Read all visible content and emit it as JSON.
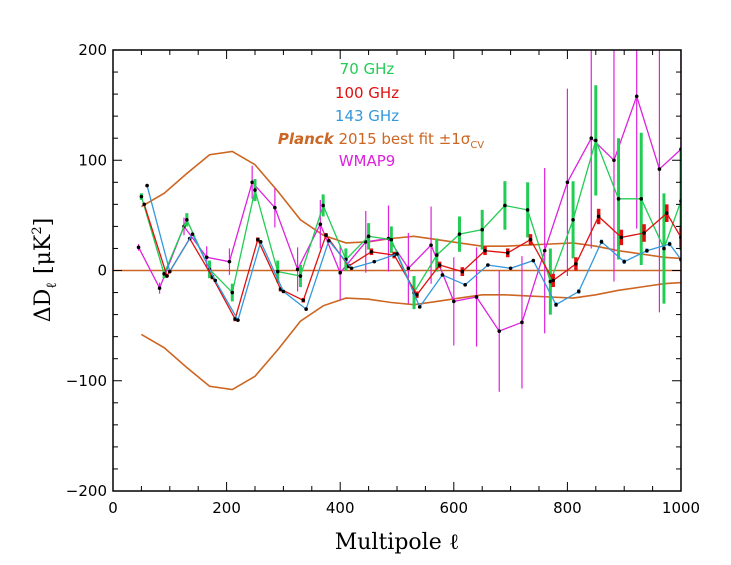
{
  "chart_data": {
    "type": "line",
    "xlabel": "Multipole ℓ",
    "ylabel": "ΔD",
    "ylabel_sub": "ℓ",
    "ylabel_units": "[μK",
    "ylabel_units_sup": "2",
    "ylabel_units_close": "]",
    "xlim": [
      0,
      1000
    ],
    "ylim": [
      -200,
      200
    ],
    "xticks": [
      0,
      200,
      400,
      600,
      800,
      1000
    ],
    "yticks": [
      -200,
      -100,
      0,
      100,
      200
    ],
    "xtick_labels": [
      "0",
      "200",
      "400",
      "600",
      "800",
      "1000"
    ],
    "ytick_labels": [
      "−200",
      "−100",
      "0",
      "100",
      "200"
    ],
    "legend": {
      "placement": "top-center",
      "entries": [
        {
          "label": "70 GHz",
          "color": "#22cc55"
        },
        {
          "label": "100 GHz",
          "color": "#e01010"
        },
        {
          "label": "143 GHz",
          "color": "#3399dd"
        },
        {
          "label_italic": "Planck",
          "label": " 2015 best fit ±1σ",
          "label_sub": "CV",
          "color": "#cc6622"
        },
        {
          "label": "WMAP9",
          "color": "#dd22dd"
        }
      ]
    },
    "zero_line": 0,
    "cv_band": {
      "name": "Planck 2015 best fit ±1σCV",
      "color": "#cc6622",
      "x": [
        50,
        90,
        130,
        170,
        210,
        250,
        290,
        330,
        370,
        410,
        450,
        490,
        530,
        570,
        610,
        650,
        690,
        730,
        770,
        810,
        850,
        890,
        930,
        970,
        1000
      ],
      "upper": [
        58,
        70,
        88,
        105,
        108,
        96,
        72,
        46,
        32,
        25,
        26,
        29,
        31,
        28,
        25,
        22,
        22,
        23,
        24,
        25,
        22,
        18,
        15,
        12,
        11
      ],
      "lower": [
        -58,
        -70,
        -88,
        -105,
        -108,
        -96,
        -72,
        -46,
        -32,
        -25,
        -26,
        -29,
        -31,
        -28,
        -25,
        -22,
        -22,
        -23,
        -24,
        -25,
        -22,
        -18,
        -15,
        -12,
        -11
      ]
    },
    "series": [
      {
        "name": "WMAP9",
        "color": "#dd22dd",
        "x": [
          45,
          82,
          125,
          165,
          205,
          245,
          285,
          325,
          365,
          400,
          445,
          485,
          520,
          560,
          600,
          640,
          680,
          720,
          760,
          800,
          842,
          882,
          922,
          962,
          1000
        ],
        "y": [
          21,
          -16,
          40,
          12,
          8,
          80,
          57,
          1,
          42,
          -2,
          26,
          29,
          2,
          23,
          -28,
          -24,
          -55,
          -47,
          18,
          80,
          120,
          100,
          158,
          92,
          110
        ],
        "err": [
          3,
          5,
          8,
          10,
          12,
          15,
          18,
          20,
          22,
          25,
          28,
          30,
          32,
          35,
          40,
          45,
          55,
          60,
          75,
          85,
          100,
          110,
          120,
          130,
          140
        ]
      },
      {
        "name": "70 GHz",
        "color": "#22cc55",
        "x": [
          50,
          90,
          130,
          170,
          210,
          250,
          290,
          330,
          370,
          410,
          450,
          490,
          530,
          570,
          610,
          650,
          690,
          730,
          770,
          810,
          850,
          890,
          930,
          970,
          1000
        ],
        "y": [
          67,
          -3,
          46,
          1,
          -20,
          73,
          -1,
          -5,
          59,
          10,
          31,
          28,
          -20,
          14,
          33,
          37,
          59,
          55,
          -10,
          46,
          118,
          65,
          65,
          20,
          63
        ],
        "err": [
          3,
          4,
          6,
          8,
          8,
          10,
          10,
          10,
          10,
          10,
          12,
          12,
          15,
          15,
          16,
          18,
          22,
          25,
          30,
          35,
          50,
          55,
          60,
          50,
          45
        ]
      },
      {
        "name": "100 GHz",
        "color": "#e01010",
        "x": [
          55,
          95,
          135,
          175,
          215,
          255,
          295,
          335,
          375,
          415,
          455,
          495,
          535,
          575,
          615,
          655,
          695,
          735,
          775,
          815,
          855,
          895,
          935,
          975,
          1000
        ],
        "y": [
          60,
          -5,
          29,
          -6,
          -44,
          28,
          -17,
          -27,
          32,
          4,
          17,
          14,
          -22,
          5,
          -1,
          18,
          16,
          28,
          -9,
          6,
          49,
          30,
          34,
          52,
          30
        ],
        "err": [
          1,
          1,
          1,
          2,
          2,
          2,
          2,
          2,
          2,
          2,
          3,
          3,
          3,
          3,
          4,
          4,
          4,
          5,
          6,
          6,
          7,
          7,
          8,
          8,
          9
        ]
      },
      {
        "name": "143 GHz",
        "color": "#3399dd",
        "x": [
          60,
          100,
          140,
          180,
          220,
          260,
          300,
          340,
          380,
          420,
          460,
          500,
          540,
          580,
          620,
          660,
          700,
          740,
          780,
          820,
          860,
          900,
          940,
          980,
          1000
        ],
        "y": [
          77,
          -1,
          33,
          -9,
          -45,
          26,
          -19,
          -35,
          27,
          2,
          8,
          15,
          -33,
          -4,
          -13,
          5,
          2,
          9,
          -31,
          -19,
          26,
          8,
          18,
          24,
          10
        ],
        "err": [
          1,
          1,
          1,
          1,
          1,
          1,
          1,
          1,
          1,
          1,
          1,
          1,
          1,
          1,
          1,
          1,
          1,
          1,
          2,
          2,
          2,
          2,
          2,
          2,
          2
        ]
      }
    ]
  }
}
